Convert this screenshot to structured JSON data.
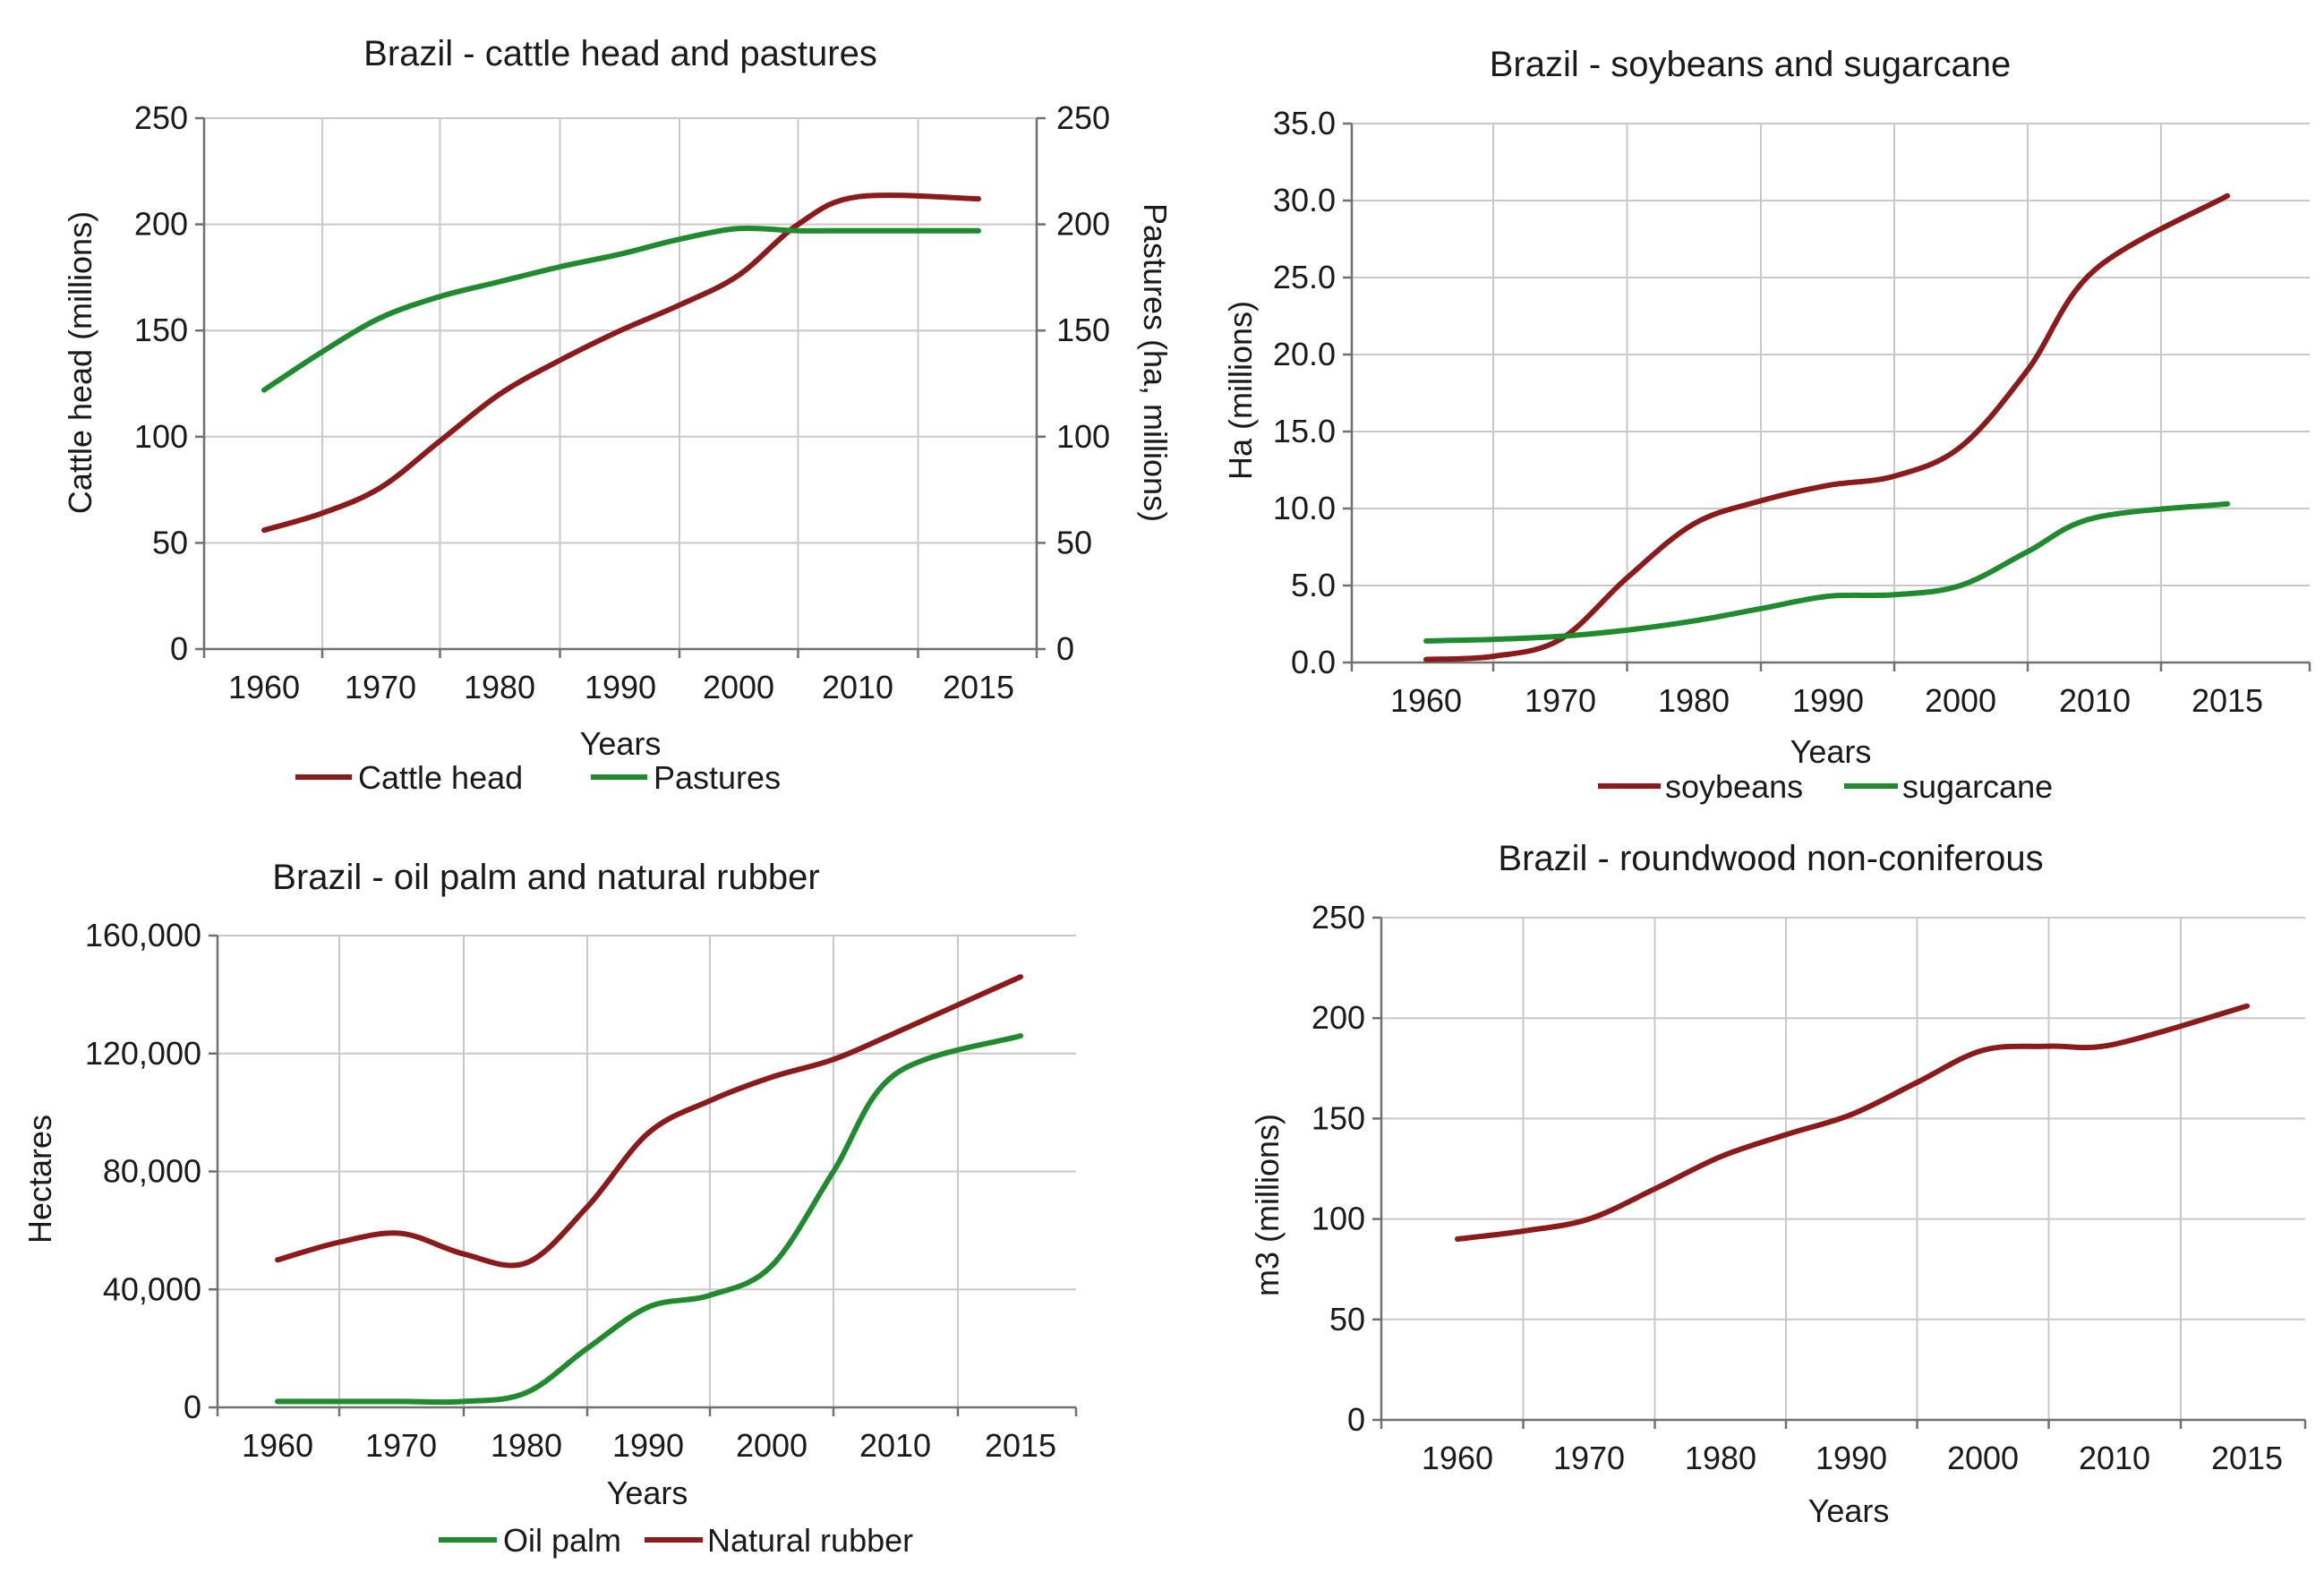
{
  "colors": {
    "red": "#8b1a1a",
    "green": "#1f8a2e",
    "grid": "#c8c8c8",
    "axis": "#707070"
  },
  "chart_data": [
    {
      "type": "line",
      "title": "Brazil - cattle head and pastures",
      "xlabel": "Years",
      "ylabel": "Cattle head (millions)",
      "y2label": "Pastures (ha, millions)",
      "x_ticks": [
        "1960",
        "1970",
        "1980",
        "1990",
        "2000",
        "2010",
        "2015"
      ],
      "xlim": [
        1955,
        2020
      ],
      "ylim": [
        0,
        250
      ],
      "y_ticks": [
        "0",
        "50",
        "100",
        "150",
        "200",
        "250"
      ],
      "y2lim": [
        0,
        250
      ],
      "y2_ticks": [
        "0",
        "50",
        "100",
        "150",
        "200",
        "250"
      ],
      "grid": true,
      "legend": "bottom",
      "series": [
        {
          "name": "Cattle head",
          "color": "#8b1a1a",
          "axis": "left",
          "x": [
            1960,
            1965,
            1970,
            1975,
            1980,
            1985,
            1990,
            1995,
            2000,
            2005,
            2010,
            2015
          ],
          "values": [
            56,
            64,
            76,
            98,
            120,
            136,
            150,
            162,
            176,
            200,
            213,
            212
          ]
        },
        {
          "name": "Pastures",
          "color": "#1f8a2e",
          "axis": "right",
          "x": [
            1960,
            1965,
            1970,
            1975,
            1980,
            1985,
            1990,
            1995,
            2000,
            2005,
            2010,
            2015
          ],
          "values": [
            122,
            140,
            156,
            166,
            173,
            180,
            186,
            193,
            198,
            197,
            197,
            197
          ]
        }
      ]
    },
    {
      "type": "line",
      "title": "Brazil - soybeans and sugarcane",
      "xlabel": "Years",
      "ylabel": "Ha (millions)",
      "x_ticks": [
        "1960",
        "1970",
        "1980",
        "1990",
        "2000",
        "2010",
        "2015"
      ],
      "xlim": [
        1955,
        2020
      ],
      "ylim": [
        0,
        35
      ],
      "y_ticks": [
        "0.0",
        "5.0",
        "10.0",
        "15.0",
        "20.0",
        "25.0",
        "30.0",
        "35.0"
      ],
      "grid": true,
      "legend": "bottom",
      "series": [
        {
          "name": "soybeans",
          "color": "#8b1a1a",
          "axis": "left",
          "x": [
            1960,
            1965,
            1970,
            1975,
            1980,
            1985,
            1990,
            1995,
            2000,
            2005,
            2010,
            2015
          ],
          "values": [
            0.2,
            0.4,
            1.5,
            5.5,
            9.0,
            10.5,
            11.5,
            12.1,
            14.0,
            19.0,
            25.5,
            30.3
          ]
        },
        {
          "name": "sugarcane",
          "color": "#1f8a2e",
          "axis": "left",
          "x": [
            1960,
            1965,
            1970,
            1975,
            1980,
            1985,
            1990,
            1995,
            2000,
            2005,
            2010,
            2015
          ],
          "values": [
            1.4,
            1.5,
            1.7,
            2.1,
            2.7,
            3.5,
            4.3,
            4.4,
            5.0,
            7.2,
            9.4,
            10.3
          ]
        }
      ]
    },
    {
      "type": "line",
      "title": "Brazil - oil palm and natural rubber",
      "xlabel": "Years",
      "ylabel": "Hectares",
      "x_ticks": [
        "1960",
        "1970",
        "1980",
        "1990",
        "2000",
        "2010",
        "2015"
      ],
      "xlim": [
        1955,
        2020
      ],
      "ylim": [
        0,
        160000
      ],
      "y_ticks": [
        "0",
        "40,000",
        "80,000",
        "120,000",
        "160,000"
      ],
      "grid": true,
      "legend": "bottom",
      "series": [
        {
          "name": "Oil palm",
          "color": "#1f8a2e",
          "axis": "left",
          "x": [
            1960,
            1965,
            1970,
            1975,
            1980,
            1985,
            1990,
            1995,
            2000,
            2005,
            2010,
            2015
          ],
          "values": [
            2000,
            2000,
            2000,
            2000,
            5000,
            20000,
            34000,
            38000,
            48000,
            80000,
            113000,
            126000
          ]
        },
        {
          "name": "Natural rubber",
          "color": "#8b1a1a",
          "axis": "left",
          "x": [
            1960,
            1965,
            1970,
            1975,
            1980,
            1985,
            1990,
            1995,
            2000,
            2005,
            2010,
            2015
          ],
          "values": [
            50000,
            56000,
            59000,
            52000,
            49000,
            68000,
            93000,
            104000,
            112000,
            118000,
            127000,
            146000
          ]
        }
      ]
    },
    {
      "type": "line",
      "title": "Brazil - roundwood non-coniferous",
      "xlabel": "Years",
      "ylabel": "m3 (millions)",
      "x_ticks": [
        "1960",
        "1970",
        "1980",
        "1990",
        "2000",
        "2010",
        "2015"
      ],
      "xlim": [
        1955,
        2020
      ],
      "ylim": [
        0,
        250
      ],
      "y_ticks": [
        "0",
        "50",
        "100",
        "150",
        "200",
        "250"
      ],
      "grid": true,
      "legend": "none",
      "series": [
        {
          "name": "",
          "color": "#8b1a1a",
          "axis": "left",
          "x": [
            1960,
            1965,
            1970,
            1975,
            1980,
            1985,
            1990,
            1995,
            2000,
            2005,
            2010,
            2015
          ],
          "values": [
            90,
            94,
            100,
            115,
            131,
            142,
            152,
            168,
            184,
            186,
            187,
            206
          ]
        }
      ]
    }
  ]
}
